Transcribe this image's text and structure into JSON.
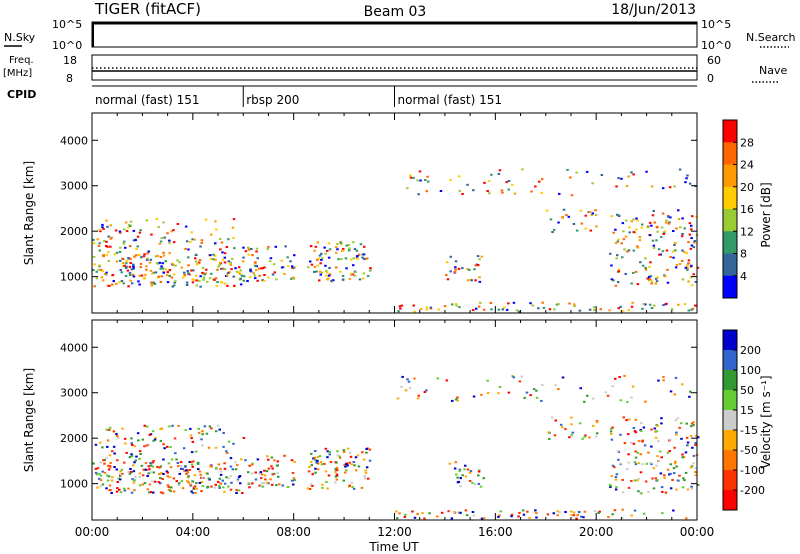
{
  "header": {
    "radar": "TIGER (fitACF)",
    "beam": "Beam 03",
    "date": "18/Jun/2013"
  },
  "strips": {
    "nsky_label": "N.Sky",
    "nsky_ticks": [
      "10^5",
      "10^0"
    ],
    "nsearch_label": "N.Search",
    "freq_label_line1": "Freq.",
    "freq_label_line2": "[MHz]",
    "freq_ticks": [
      "18",
      "8"
    ],
    "nave_label": "Nave",
    "nave_ticks": [
      "60",
      "0"
    ],
    "cpid_label": "CPID"
  },
  "cpid_segments": [
    {
      "label": "normal (fast) 151",
      "start_h": 0,
      "end_h": 6
    },
    {
      "label": "rbsp 200",
      "start_h": 6,
      "end_h": 12
    },
    {
      "label": "normal (fast) 151",
      "start_h": 12,
      "end_h": 24
    }
  ],
  "power_colorbar": {
    "label": "Power [dB]",
    "ticks": [
      "28",
      "24",
      "20",
      "16",
      "12",
      "8",
      "4"
    ],
    "colors": [
      "#ff0000",
      "#ff6600",
      "#ff9900",
      "#ffcc00",
      "#99cc33",
      "#339966",
      "#336699",
      "#0000ff"
    ]
  },
  "velocity_colorbar": {
    "label": "Velocity [m s⁻¹]",
    "ticks": [
      "200",
      "100",
      "50",
      "15",
      "-15",
      "-50",
      "-100",
      "-200"
    ],
    "colors": [
      "#0000cc",
      "#3366cc",
      "#339933",
      "#66cc33",
      "#cccccc",
      "#ffaa00",
      "#ff7700",
      "#ff3300",
      "#ff0000"
    ]
  },
  "chart_data": {
    "type": "heatmap",
    "panels": [
      "Power [dB]",
      "Velocity [m s⁻¹]"
    ],
    "ylabel": "Slant Range [km]",
    "xlabel": "Time UT",
    "xlim": [
      "00:00",
      "24:00"
    ],
    "ylim": [
      200,
      4600
    ],
    "y_ticks": [
      1000,
      2000,
      3000,
      4000
    ],
    "x_tick_labels": [
      "00:00",
      "04:00",
      "08:00",
      "12:00",
      "16:00",
      "20:00",
      "00:00"
    ]
  }
}
